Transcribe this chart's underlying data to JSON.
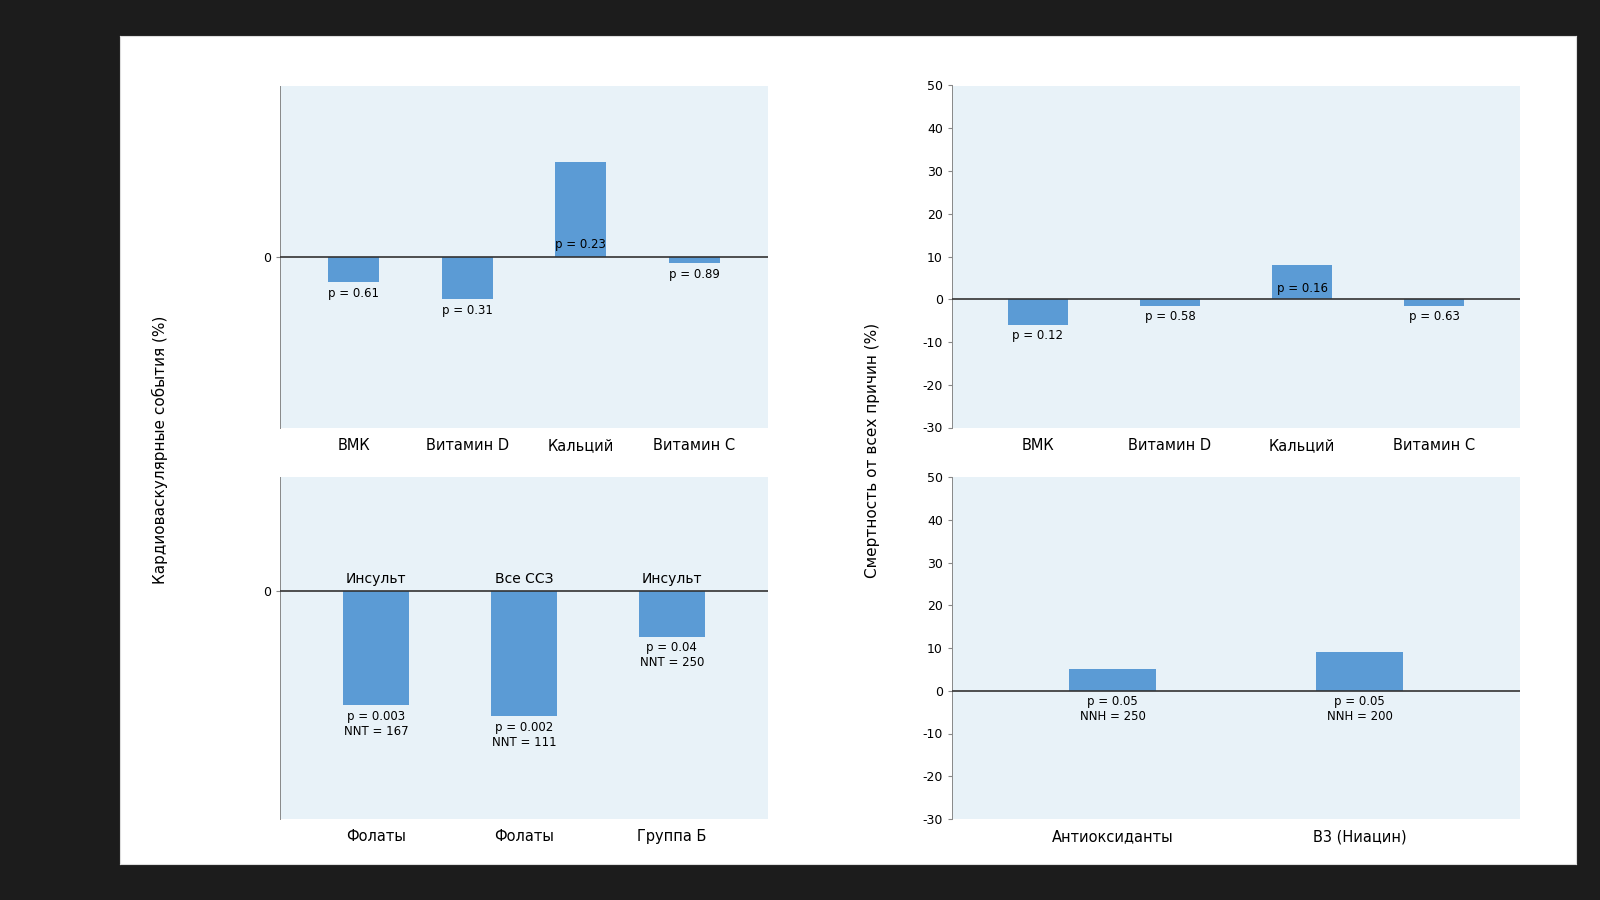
{
  "background_color": "#1c1c1c",
  "outer_bg": "#ffffff",
  "panel_bg": "#e8f2f8",
  "bar_color": "#5b9bd5",
  "zero_line_color": "#333333",
  "top_left": {
    "categories": [
      "ВМК",
      "Витамин D",
      "Кальций",
      "Витамин С"
    ],
    "values": [
      -1.5,
      -2.5,
      5.5,
      -0.4
    ],
    "p_values": [
      "p = 0.61",
      "p = 0.31",
      "p = 0.23",
      "p = 0.89"
    ],
    "ylim": [
      -10,
      10
    ],
    "yticks": [
      0
    ],
    "ytick_labels": [
      "0"
    ]
  },
  "top_right": {
    "categories": [
      "ВМК",
      "Витамин D",
      "Кальций",
      "Витамин С"
    ],
    "values": [
      -6,
      -1.5,
      8,
      -1.5
    ],
    "p_values": [
      "p = 0.12",
      "p = 0.58",
      "p = 0.16",
      "p = 0.63"
    ],
    "ylim": [
      -30,
      50
    ],
    "yticks": [
      -30,
      -20,
      -10,
      0,
      10,
      20,
      30,
      40,
      50
    ],
    "ytick_labels": [
      "-30",
      "-20",
      "-10",
      "0",
      "10",
      "20",
      "30",
      "40",
      "50"
    ]
  },
  "bottom_left": {
    "categories": [
      "Фолаты",
      "Фолаты",
      "Группа Б"
    ],
    "subtitles": [
      "Инсульт",
      "Все ССЗ",
      "Инсульт"
    ],
    "values": [
      -10,
      -11,
      -4
    ],
    "p_values": [
      "p = 0.003\nNNT = 167",
      "p = 0.002\nNNT = 111",
      "p = 0.04\nNNT = 250"
    ],
    "ylim": [
      -20,
      10
    ],
    "yticks": [
      0
    ],
    "ytick_labels": [
      "0"
    ]
  },
  "bottom_right": {
    "categories": [
      "Антиоксиданты",
      "В3 (Ниацин)"
    ],
    "values": [
      5,
      9
    ],
    "p_values": [
      "p = 0.05\nNNH = 250",
      "p = 0.05\nNNH = 200"
    ],
    "ylim": [
      -30,
      50
    ],
    "yticks": [
      -30,
      -20,
      -10,
      0,
      10,
      20,
      30,
      40,
      50
    ],
    "ytick_labels": [
      "-30",
      "-20",
      "-10",
      "0",
      "10",
      "20",
      "30",
      "40",
      "50"
    ]
  },
  "left_ylabel": "Кардиоваскулярные события (%)",
  "right_ylabel": "Смертность от всех причин (%)"
}
